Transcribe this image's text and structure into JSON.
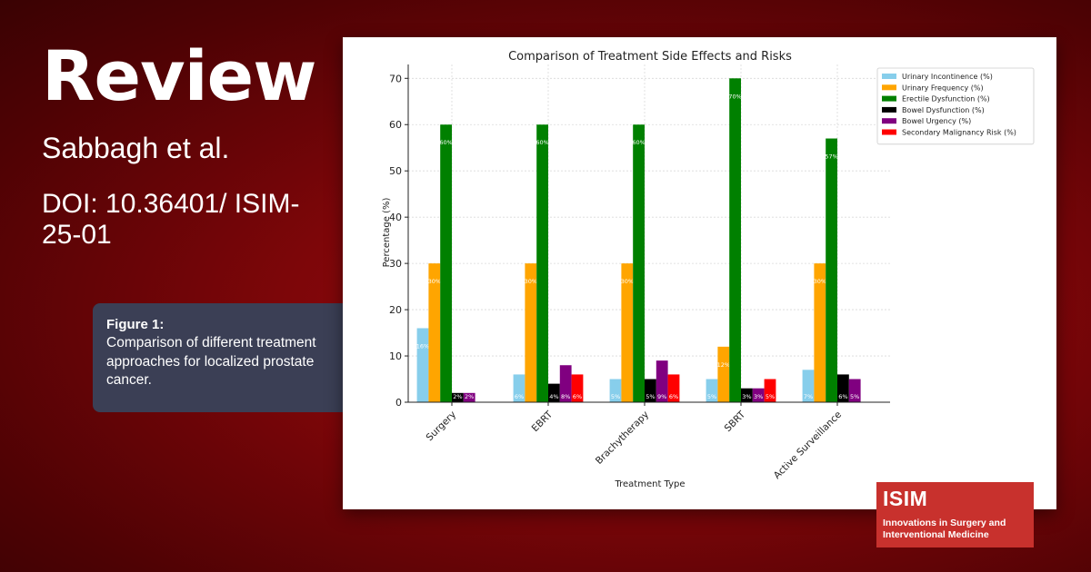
{
  "header": {
    "title": "Review",
    "authors": "Sabbagh et al.",
    "doi": "DOI: 10.36401/ ISIM-25-01"
  },
  "caption": {
    "label": "Figure 1:",
    "text": "Comparison of different treatment approaches for localized prostate cancer."
  },
  "logo": {
    "acronym": "ISIM",
    "name": "Innovations in Surgery and Interventional Medicine"
  },
  "chart_data": {
    "type": "bar",
    "title": "Comparison of Treatment Side Effects and Risks",
    "xlabel": "Treatment Type",
    "ylabel": "Percentage (%)",
    "ylim": [
      0,
      73
    ],
    "yticks": [
      0,
      10,
      20,
      30,
      40,
      50,
      60,
      70
    ],
    "grid": true,
    "legend_position": "top-right",
    "categories": [
      "Surgery",
      "EBRT",
      "Brachytherapy",
      "SBRT",
      "Active Surveillance"
    ],
    "series": [
      {
        "name": "Urinary Incontinence (%)",
        "color": "#87ceeb",
        "values": [
          16,
          6,
          5,
          5,
          7
        ],
        "labels": [
          "16%",
          "6%",
          "5%",
          "5%",
          "7%"
        ]
      },
      {
        "name": "Urinary Frequency (%)",
        "color": "#ffa500",
        "values": [
          30,
          30,
          30,
          12,
          30
        ],
        "labels": [
          "30%",
          "30%",
          "30%",
          "12%",
          "30%"
        ]
      },
      {
        "name": "Erectile Dysfunction (%)",
        "color": "#008000",
        "values": [
          60,
          60,
          60,
          70,
          57
        ],
        "labels": [
          "60%",
          "60%",
          "60%",
          "70%",
          "57%"
        ]
      },
      {
        "name": "Bowel Dysfunction (%)",
        "color": "#000000",
        "values": [
          2,
          4,
          5,
          3,
          6
        ],
        "labels": [
          "2%",
          "4%",
          "5%",
          "3%",
          "6%"
        ]
      },
      {
        "name": "Bowel Urgency (%)",
        "color": "#800080",
        "values": [
          2,
          8,
          9,
          3,
          5
        ],
        "labels": [
          "2%",
          "8%",
          "9%",
          "3%",
          "5%"
        ]
      },
      {
        "name": "Secondary Malignancy Risk (%)",
        "color": "#ff0000",
        "values": [
          0,
          6,
          6,
          5,
          0
        ],
        "labels": [
          "",
          "6%",
          "6%",
          "5%",
          ""
        ]
      }
    ]
  }
}
